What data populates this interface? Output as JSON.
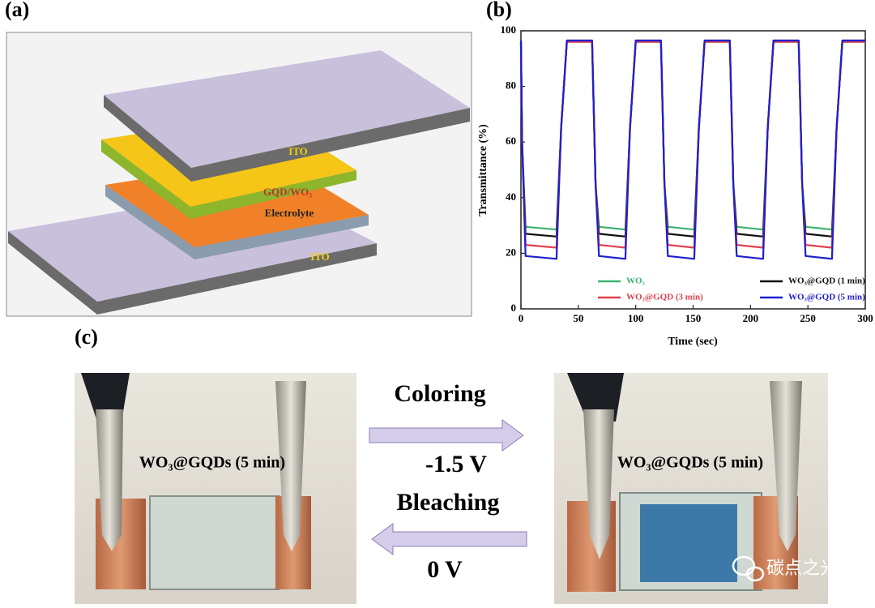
{
  "panel_labels": [
    "(a)",
    "(b)",
    "(c)"
  ],
  "panel_a": {
    "layers": [
      "ITO",
      "GQD/WO₃",
      "Electrolyte",
      "ITO"
    ]
  },
  "chart_data": {
    "type": "line",
    "xlabel": "Time (sec)",
    "ylabel": "Transmittance (%)",
    "x": [
      0,
      1,
      4,
      31,
      35,
      40,
      62,
      65,
      68,
      91,
      95,
      100,
      122,
      125,
      128,
      151,
      155,
      160,
      182,
      185,
      188,
      211,
      215,
      220,
      242,
      245,
      248,
      271,
      275,
      280,
      300
    ],
    "series": [
      {
        "name": "WO₃",
        "color": "#3cb371",
        "values": [
          96,
          60,
          29.5,
          28.5,
          65,
          96,
          96,
          45,
          29.5,
          28.5,
          65,
          96,
          96,
          45,
          29.5,
          28.5,
          65,
          96,
          96,
          45,
          29.5,
          28.5,
          65,
          96,
          96,
          45,
          29.5,
          28.5,
          65,
          96,
          96
        ]
      },
      {
        "name": "WO₃@GQD (1 min)",
        "color": "#111111",
        "values": [
          96.5,
          60,
          27,
          26,
          65,
          96.5,
          96.5,
          45,
          27,
          26,
          65,
          96.5,
          96.5,
          45,
          27,
          26,
          65,
          96.5,
          96.5,
          45,
          27,
          26,
          65,
          96.5,
          96.5,
          45,
          27,
          26,
          65,
          96.5,
          96.5
        ]
      },
      {
        "name": "WO₃@GQD (3 min)",
        "color": "#e0414f",
        "values": [
          96,
          60,
          23,
          22,
          65,
          96,
          96,
          45,
          23,
          22,
          65,
          96,
          96,
          45,
          23,
          22,
          65,
          96,
          96,
          45,
          23,
          22,
          65,
          96,
          96,
          45,
          23,
          22,
          65,
          96,
          96
        ]
      },
      {
        "name": "WO₃@GQD (5 min)",
        "color": "#1f1fcf",
        "values": [
          96.5,
          60,
          19,
          18,
          65,
          96.5,
          96.5,
          45,
          19,
          18,
          65,
          96.5,
          96.5,
          45,
          19,
          18,
          65,
          96.5,
          96.5,
          45,
          19,
          18,
          65,
          96.5,
          96.5,
          45,
          19,
          18,
          65,
          96.5,
          96.5
        ]
      }
    ],
    "xlim": [
      0,
      300
    ],
    "xticks": [
      0,
      50,
      100,
      150,
      200,
      250,
      300
    ],
    "ylim": [
      0,
      100
    ],
    "yticks": [
      0,
      20,
      40,
      60,
      80,
      100
    ],
    "legend": "lower center"
  },
  "panel_c": {
    "samples": [
      "WO₃@GQDs (5 min)",
      "WO₃@GQDs (5 min)"
    ],
    "forward": {
      "label": "Coloring",
      "voltage": "-1.5 V"
    },
    "reverse": {
      "label": "Bleaching",
      "voltage": "0 V"
    }
  },
  "watermark": "碳点之光"
}
